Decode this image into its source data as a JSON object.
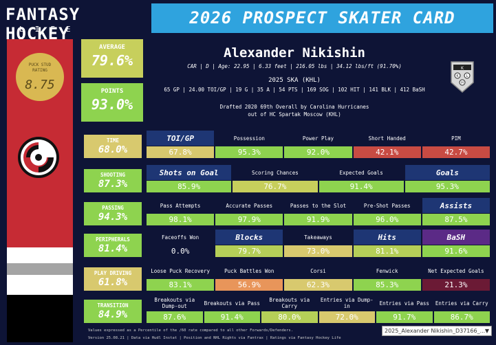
{
  "header": {
    "logo_line1": "FANTASY HOCKEY",
    "logo_line2": "LIFE",
    "title": "2026 PROSPECT SKATER CARD"
  },
  "rating": {
    "label_line1": "PUCK STUD",
    "label_line2": "RATING",
    "value": "8.75",
    "color": "#d9b852"
  },
  "summary": {
    "average_label": "AVERAGE",
    "average_value": "79.6%",
    "points_label": "POINTS",
    "points_value": "93.0%"
  },
  "player": {
    "name": "Alexander Nikishin",
    "info_line": "CAR | D | Age: 22.95 | 6.33 feet | 216.05 lbs | 34.12 lbs/ft  (91.70%)",
    "season_title": "2025 SKA (KHL)",
    "season_line": "65 GP | 24.00 TOI/GP | 19 G | 35 A | 54 PTS | 169 SOG | 102 HIT | 141 BLK | 412 BaSH",
    "draft_line1": "Drafted 2020 69th Overall by Carolina Hurricanes",
    "draft_line2": "out of HC Spartak Moscow (KHL)"
  },
  "team_logo": "carolina-hurricanes-logo",
  "league_logo": "khl-logo",
  "colors": {
    "background": "#0e1436",
    "title_bar": "#2fa3de",
    "team_red": "#c62b34",
    "highlight_header": "#1e3674",
    "green": "#8ed34f",
    "yellow": "#d8c96e",
    "orange": "#e8955a",
    "red": "#c84b43",
    "dark_red": "#6b1a35"
  },
  "categories": [
    {
      "label": "TIME",
      "value": "68.0%",
      "color": "#d8c96e",
      "metrics": [
        {
          "label": "TOI/GP",
          "value": "67.8%",
          "highlight": true,
          "color": "#d8c96e"
        },
        {
          "label": "Possession",
          "value": "95.3%",
          "color": "#8ed34f"
        },
        {
          "label": "Power Play",
          "value": "92.0%",
          "color": "#8ed34f"
        },
        {
          "label": "Short Handed",
          "value": "42.1%",
          "color": "#c84b43"
        },
        {
          "label": "PIM",
          "value": "42.7%",
          "color": "#c84b43"
        }
      ]
    },
    {
      "label": "SHOOTING",
      "value": "87.3%",
      "color": "#8ed34f",
      "metrics": [
        {
          "label": "Shots on Goal",
          "value": "85.9%",
          "highlight": true,
          "color": "#8ed34f"
        },
        {
          "label": "Scoring Chances",
          "value": "76.7%",
          "color": "#c7cf5c"
        },
        {
          "label": "Expected Goals",
          "value": "91.4%",
          "color": "#8ed34f"
        },
        {
          "label": "Goals",
          "value": "95.3%",
          "highlight": true,
          "color": "#8ed34f"
        }
      ]
    },
    {
      "label": "PASSING",
      "value": "94.3%",
      "color": "#8ed34f",
      "metrics": [
        {
          "label": "Pass Attempts",
          "value": "98.1%",
          "color": "#8ed34f"
        },
        {
          "label": "Accurate Passes",
          "value": "97.9%",
          "color": "#8ed34f"
        },
        {
          "label": "Passes to the Slot",
          "value": "91.9%",
          "color": "#8ed34f"
        },
        {
          "label": "Pre-Shot Passes",
          "value": "96.0%",
          "color": "#8ed34f"
        },
        {
          "label": "Assists",
          "value": "87.5%",
          "highlight": true,
          "color": "#8ed34f"
        }
      ]
    },
    {
      "label": "PERIPHERALS",
      "value": "81.4%",
      "color": "#8ed34f",
      "metrics": [
        {
          "label": "Faceoffs Won",
          "value": "0.0%",
          "color": ""
        },
        {
          "label": "Blocks",
          "value": "79.7%",
          "highlight": true,
          "color": "#b5cf58"
        },
        {
          "label": "Takeaways",
          "value": "73.0%",
          "color": "#d8c96e"
        },
        {
          "label": "Hits",
          "value": "81.1%",
          "highlight": true,
          "color": "#b5cf58"
        },
        {
          "label": "BaSH",
          "value": "91.6%",
          "highlight_purple": true,
          "color": "#8ed34f"
        }
      ]
    },
    {
      "label": "PLAY DRIVING",
      "value": "61.8%",
      "color": "#d8c96e",
      "metrics": [
        {
          "label": "Loose Puck Recovery",
          "value": "83.1%",
          "color": "#8ed34f"
        },
        {
          "label": "Puck Battles Won",
          "value": "56.9%",
          "color": "#e8955a"
        },
        {
          "label": "Corsi",
          "value": "62.3%",
          "color": "#d8c96e"
        },
        {
          "label": "Fenwick",
          "value": "85.3%",
          "color": "#8ed34f"
        },
        {
          "label": "Net Expected Goals",
          "value": "21.3%",
          "color": "#6b1a35"
        }
      ]
    },
    {
      "label": "TRANSITION",
      "value": "84.9%",
      "color": "#8ed34f",
      "metrics": [
        {
          "label": "Breakouts via Dump-out",
          "value": "87.6%",
          "color": "#8ed34f"
        },
        {
          "label": "Breakouts via Pass",
          "value": "91.4%",
          "color": "#8ed34f"
        },
        {
          "label": "Breakouts via Carry",
          "value": "80.0%",
          "color": "#b5cf58"
        },
        {
          "label": "Entries via Dump-in",
          "value": "72.0%",
          "color": "#d8c96e"
        },
        {
          "label": "Entries via Pass",
          "value": "91.7%",
          "color": "#8ed34f"
        },
        {
          "label": "Entries via Carry",
          "value": "86.7%",
          "color": "#8ed34f"
        }
      ]
    }
  ],
  "footer": {
    "note1": "Values expressed as a Percentile of the /60 rate compared to all other Forwards/Defenders.",
    "note2": "Version 25.08.21 | Data via Hudl Instat | Position and NHL Rights via Fantrax | Ratings via Fantasy Hockey Life"
  },
  "selector": {
    "selected": "2025_Alexander Nikishin_D37166_..."
  }
}
